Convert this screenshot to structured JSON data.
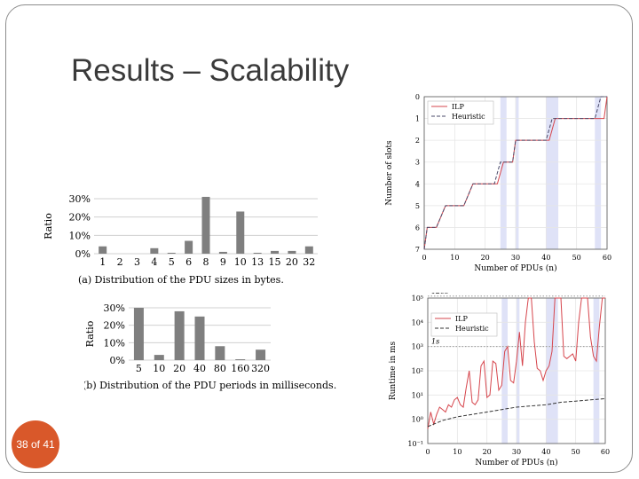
{
  "slide": {
    "title": "Results – Scalability",
    "page_number": "38 of 41"
  },
  "chart_data": [
    {
      "type": "bar",
      "categories": [
        "1",
        "2",
        "3",
        "4",
        "5",
        "6",
        "8",
        "9",
        "10",
        "13",
        "15",
        "20",
        "32"
      ],
      "values": [
        4,
        0,
        0,
        3,
        0.5,
        7,
        31,
        1,
        23,
        0.5,
        1.5,
        1.5,
        4
      ],
      "yticks": [
        "30%",
        "20%",
        "10%",
        "0%"
      ],
      "ylim": [
        0,
        30
      ],
      "ylabel": "Ratio",
      "caption": "(a) Distribution of the PDU sizes in bytes.",
      "color": "#7f7f7f"
    },
    {
      "type": "bar",
      "categories": [
        "5",
        "10",
        "20",
        "40",
        "80",
        "160",
        "320"
      ],
      "values": [
        30,
        3,
        28,
        25,
        8,
        0.5,
        6
      ],
      "yticks": [
        "30%",
        "20%",
        "10%",
        "0%"
      ],
      "ylim": [
        0,
        30
      ],
      "ylabel": "Ratio",
      "caption": "(b) Distribution of the PDU periods in milliseconds.",
      "color": "#7f7f7f"
    },
    {
      "type": "line",
      "xlabel": "Number of PDUs (n)",
      "ylabel": "Number of slots",
      "xticks": [
        "0",
        "10",
        "20",
        "30",
        "40",
        "50",
        "60"
      ],
      "yticks": [
        "0",
        "1",
        "2",
        "3",
        "4",
        "5",
        "6",
        "7"
      ],
      "xlim": [
        0,
        60
      ],
      "ylim": [
        0,
        7
      ],
      "grid": true,
      "legend_position": "top-left",
      "shaded_ranges": [
        [
          25,
          27
        ],
        [
          30,
          31
        ],
        [
          40,
          44
        ],
        [
          56,
          58
        ]
      ],
      "series": [
        {
          "name": "ILP",
          "color": "#d6454c",
          "dash": "solid",
          "x": [
            0,
            1,
            3,
            4,
            7,
            9,
            12,
            13,
            16,
            18,
            22,
            24,
            26,
            27,
            29,
            30,
            33,
            35,
            38,
            41,
            43,
            45,
            55,
            57,
            59,
            60
          ],
          "y": [
            0,
            1,
            1,
            1,
            2,
            2,
            2,
            2,
            3,
            3,
            3,
            3,
            4,
            4,
            4,
            5,
            5,
            5,
            5,
            5,
            6,
            6,
            6,
            6,
            6,
            7
          ]
        },
        {
          "name": "Heuristic",
          "color": "#4a4a6a",
          "dash": "dashed",
          "x": [
            0,
            1,
            3,
            4,
            7,
            9,
            12,
            13,
            16,
            18,
            22,
            23,
            25,
            26,
            29,
            30,
            33,
            35,
            38,
            40,
            42,
            45,
            55,
            56,
            58,
            60
          ],
          "y": [
            0,
            1,
            1,
            1,
            2,
            2,
            2,
            2,
            3,
            3,
            3,
            3,
            4,
            4,
            4,
            5,
            5,
            5,
            5,
            5,
            6,
            6,
            6,
            6,
            7,
            7
          ]
        }
      ]
    },
    {
      "type": "line",
      "xlabel": "Number of PDUs (n)",
      "ylabel": "Runtime in ms",
      "xticks": [
        "0",
        "10",
        "20",
        "30",
        "40",
        "50",
        "60"
      ],
      "yticks": [
        "10⁵",
        "10⁴",
        "10³",
        "10²",
        "10¹",
        "10⁰",
        "10⁻¹"
      ],
      "xlim": [
        0,
        60
      ],
      "ylim_log10": [
        -1,
        5
      ],
      "reference_lines": [
        {
          "label": "120s",
          "log10": 5.08
        },
        {
          "label": "1s",
          "log10": 3
        }
      ],
      "grid": true,
      "legend_position": "top-left",
      "shaded_ranges": [
        [
          25,
          27
        ],
        [
          30,
          31
        ],
        [
          40,
          44
        ],
        [
          56,
          58
        ]
      ],
      "series": [
        {
          "name": "ILP",
          "color": "#d6454c",
          "dash": "solid",
          "x": [
            0,
            1,
            2,
            3,
            4,
            5,
            6,
            7,
            8,
            9,
            10,
            11,
            12,
            13,
            14,
            15,
            16,
            17,
            18,
            19,
            20,
            21,
            22,
            23,
            24,
            25,
            26,
            27,
            28,
            29,
            30,
            31,
            32,
            33,
            34,
            35,
            36,
            37,
            38,
            39,
            40,
            41,
            42,
            43,
            44,
            45,
            46,
            47,
            48,
            49,
            50,
            51,
            52,
            53,
            54,
            55,
            56,
            57,
            58,
            59,
            60
          ],
          "y": [
            -0.4,
            0.3,
            -0.2,
            0.2,
            0.5,
            0.4,
            0.3,
            0.6,
            0.5,
            0.8,
            0.9,
            0.6,
            0.5,
            1.3,
            2.0,
            0.7,
            0.6,
            0.8,
            2.2,
            2.4,
            0.9,
            1.0,
            2.4,
            2.3,
            1.2,
            1.4,
            2.8,
            3.0,
            1.6,
            1.5,
            2.4,
            3.6,
            2.2,
            4.0,
            5.0,
            5.0,
            3.2,
            2.1,
            2.0,
            1.6,
            2.0,
            2.2,
            2.8,
            5.0,
            5.0,
            5.0,
            2.6,
            2.5,
            2.6,
            2.7,
            2.4,
            4.0,
            5.0,
            5.0,
            5.0,
            3.4,
            2.6,
            2.4,
            3.8,
            5.0,
            5.0
          ]
        },
        {
          "name": "Heuristic",
          "color": "#333333",
          "dash": "dashed",
          "x": [
            0,
            5,
            10,
            15,
            20,
            25,
            30,
            35,
            40,
            45,
            50,
            55,
            60
          ],
          "y": [
            -0.3,
            -0.05,
            0.1,
            0.2,
            0.3,
            0.4,
            0.5,
            0.55,
            0.6,
            0.7,
            0.75,
            0.8,
            0.85
          ]
        }
      ]
    }
  ]
}
